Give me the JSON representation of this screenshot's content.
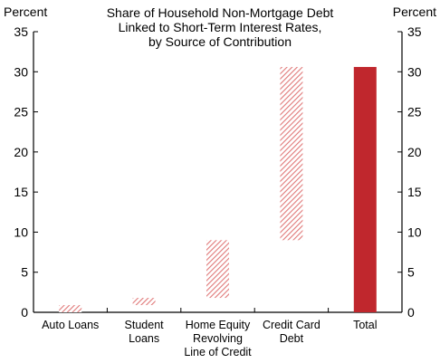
{
  "chart_data": {
    "type": "bar",
    "subtype": "waterfall",
    "title_lines": [
      "Share of Household Non-Mortgage Debt",
      "Linked to Short-Term Interest Rates,",
      "by Source of Contribution"
    ],
    "y_unit_left": "Percent",
    "y_unit_right": "Percent",
    "ylim": [
      0,
      35
    ],
    "yticks": [
      0,
      5,
      10,
      15,
      20,
      25,
      30,
      35
    ],
    "categories": [
      [
        "Auto Loans"
      ],
      [
        "Student",
        "Loans"
      ],
      [
        "Home Equity",
        "Revolving",
        "Line of Credit"
      ],
      [
        "Credit Card",
        "Debt"
      ],
      [
        "Total"
      ]
    ],
    "bars": [
      {
        "category": "Auto Loans",
        "base": 0,
        "top": 0.9,
        "style": "hatched"
      },
      {
        "category": "Student Loans",
        "base": 0.9,
        "top": 1.8,
        "style": "hatched"
      },
      {
        "category": "Home Equity Revolving Line of Credit",
        "base": 1.8,
        "top": 9.0,
        "style": "hatched"
      },
      {
        "category": "Credit Card Debt",
        "base": 9.0,
        "top": 30.6,
        "style": "hatched"
      },
      {
        "category": "Total",
        "base": 0,
        "top": 30.6,
        "style": "solid"
      }
    ],
    "grid": false,
    "legend": "none",
    "colors": {
      "hatch_fill": "#ffffff",
      "hatch_stroke": "#e07878",
      "solid_fill": "#c0272d",
      "axis": "#000000"
    }
  }
}
